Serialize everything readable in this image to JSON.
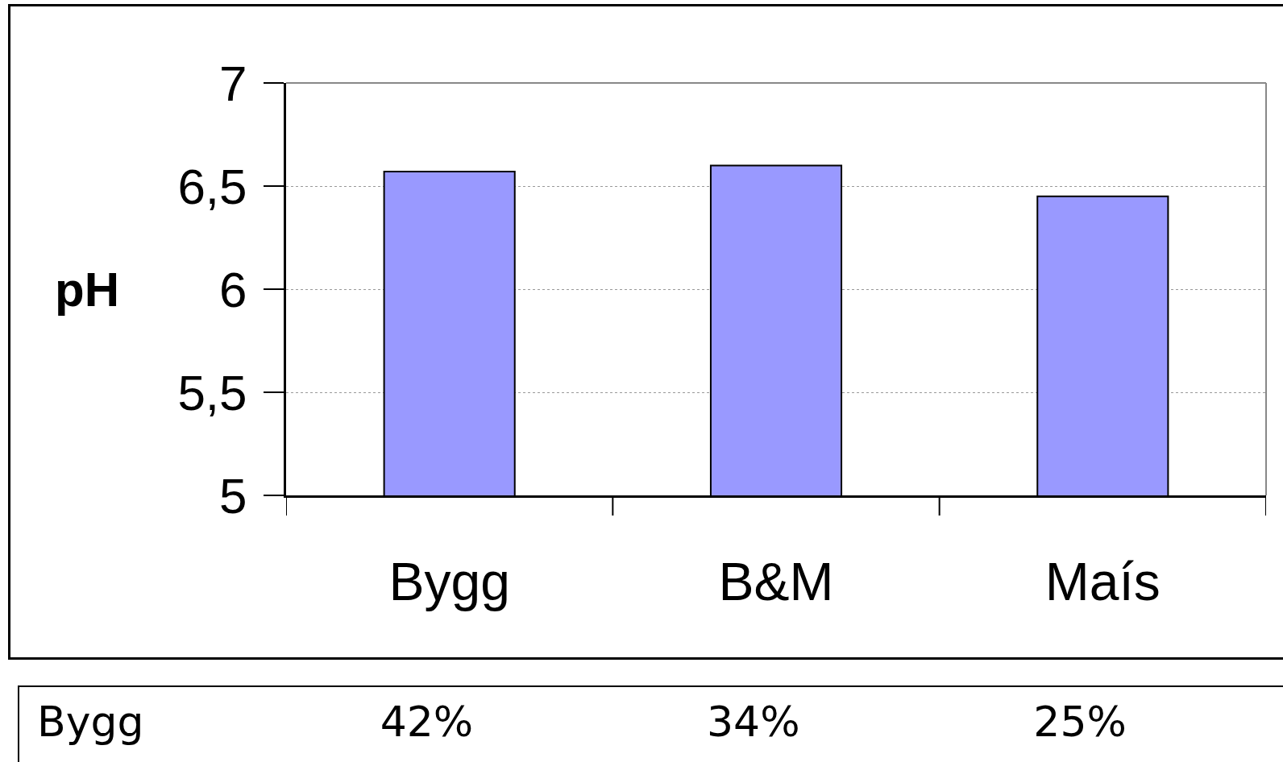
{
  "chart_data": {
    "type": "bar",
    "ylabel": "pH",
    "categories": [
      "Bygg",
      "B&M",
      "Maís"
    ],
    "values": [
      6.57,
      6.6,
      6.45
    ],
    "color": "#9999ff",
    "ylim": [
      5,
      7
    ],
    "yticks": [
      5,
      {
        "value": 5.5,
        "label": "5,5"
      },
      6,
      {
        "value": 6.5,
        "label": "6,5"
      },
      7
    ],
    "grid": "y",
    "annotations": [
      "Bygg",
      "42%",
      "34%",
      "25%"
    ]
  }
}
